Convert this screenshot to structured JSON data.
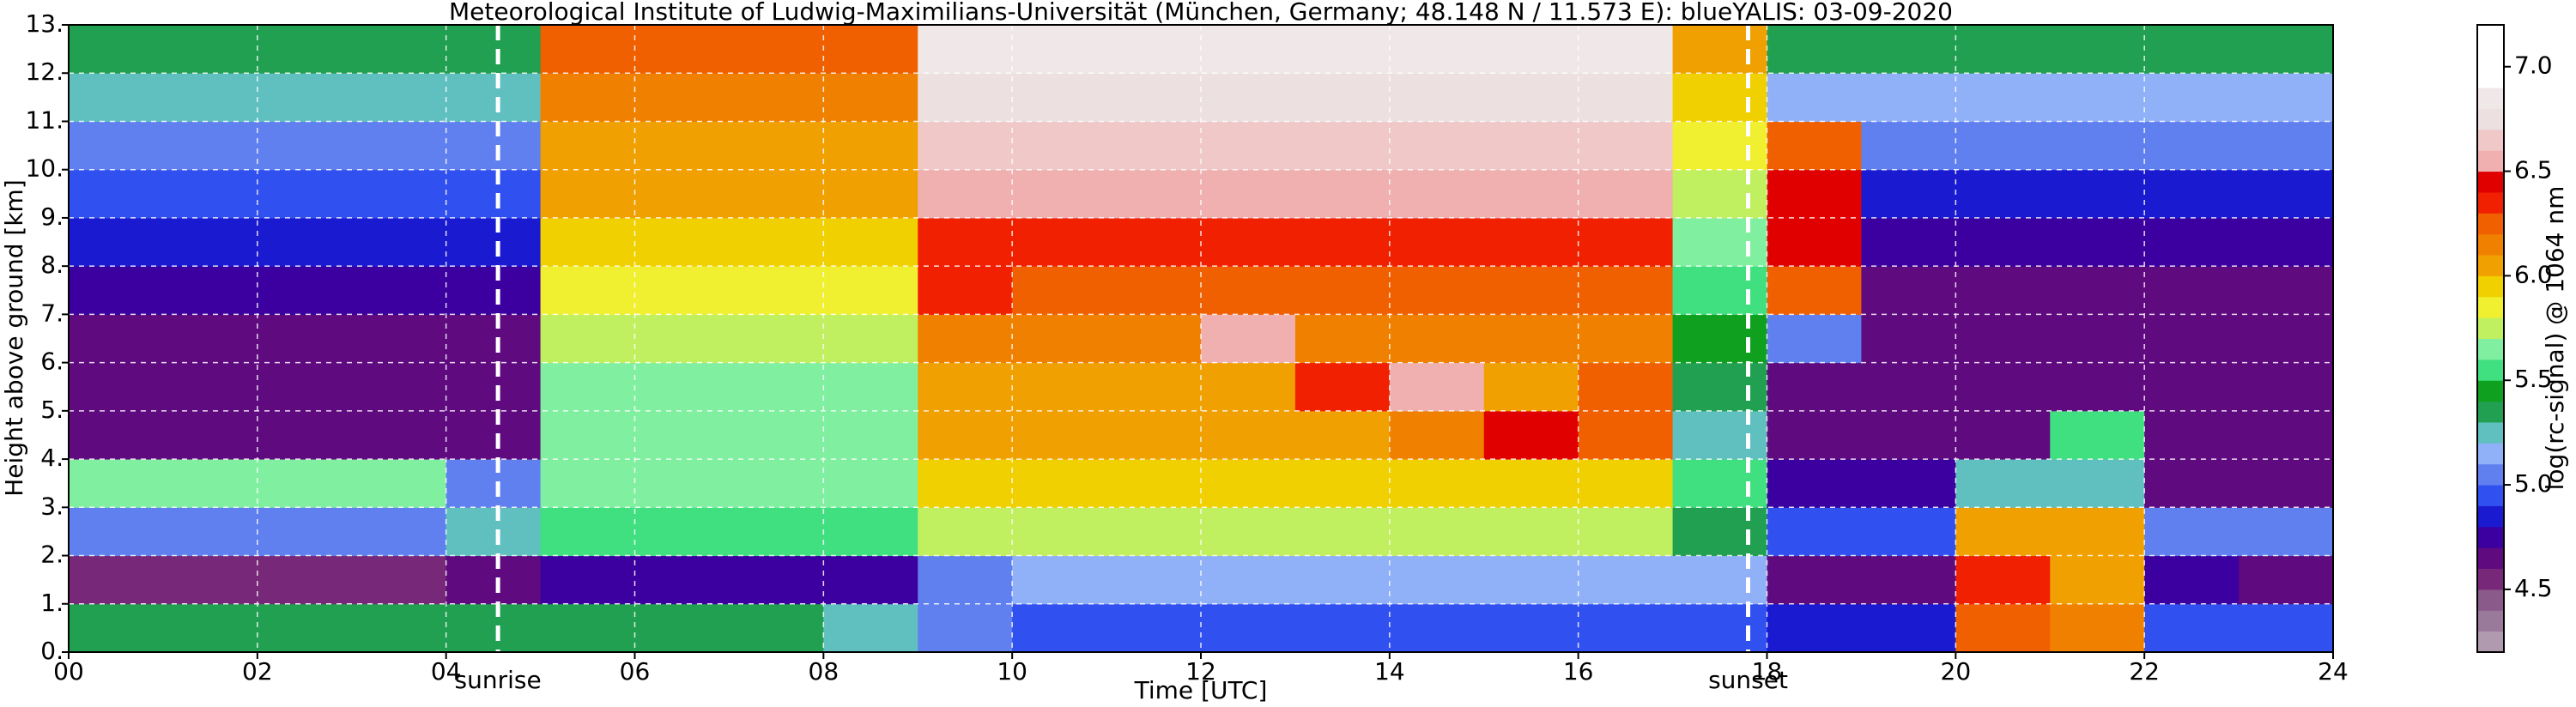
{
  "chart_data": {
    "type": "heatmap",
    "title": "Meteorological Institute of Ludwig-Maximilians-Universität (München, Germany; 48.148 N / 11.573 E):    blueYALIS: 03-09-2020",
    "x_label": "Time [UTC]",
    "y_label": "Height above ground [km]",
    "xlim": [
      0,
      24
    ],
    "ylim": [
      0,
      13
    ],
    "xticks": [
      {
        "value": 0,
        "label": "00"
      },
      {
        "value": 2,
        "label": "02"
      },
      {
        "value": 4,
        "label": "04"
      },
      {
        "value": 6,
        "label": "06"
      },
      {
        "value": 8,
        "label": "08"
      },
      10,
      12,
      14,
      16,
      18,
      20,
      22,
      24
    ],
    "yticks": [
      {
        "value": 0,
        "label": "0."
      },
      {
        "value": 1,
        "label": "1."
      },
      {
        "value": 2,
        "label": "2."
      },
      {
        "value": 3,
        "label": "3."
      },
      {
        "value": 4,
        "label": "4."
      },
      {
        "value": 5,
        "label": "5."
      },
      {
        "value": 6,
        "label": "6."
      },
      {
        "value": 7,
        "label": "7."
      },
      {
        "value": 8,
        "label": "8."
      },
      {
        "value": 9,
        "label": "9."
      },
      {
        "value": 10,
        "label": "10."
      },
      {
        "value": 11,
        "label": "11."
      },
      {
        "value": 12,
        "label": "12."
      },
      {
        "value": 13,
        "label": "13."
      }
    ],
    "grid": true,
    "annotations": [
      {
        "x": 4.55,
        "label": "sunrise"
      },
      {
        "x": 17.8,
        "label": "sunset"
      }
    ],
    "xbins": [
      0,
      1,
      2,
      3,
      4,
      5,
      6,
      7,
      8,
      9,
      10,
      11,
      12,
      13,
      14,
      15,
      16,
      17,
      18,
      19,
      20,
      21,
      22,
      23,
      24
    ],
    "ybins": [
      0,
      1,
      2,
      3,
      4,
      5,
      6,
      7,
      8,
      9,
      10,
      11,
      12,
      13
    ],
    "z": [
      [
        5.3,
        5.3,
        5.3,
        5.3,
        5.3,
        5.3,
        5.3,
        5.3,
        5.2,
        5.0,
        4.9,
        4.9,
        4.9,
        4.9,
        4.9,
        4.9,
        4.9,
        4.9,
        4.8,
        4.8,
        6.2,
        6.1,
        4.9,
        4.9
      ],
      [
        4.5,
        4.5,
        4.5,
        4.5,
        4.6,
        4.7,
        4.7,
        4.7,
        4.7,
        5.0,
        5.1,
        5.1,
        5.1,
        5.1,
        5.1,
        5.1,
        5.1,
        5.1,
        4.6,
        4.6,
        6.3,
        6.0,
        4.7,
        4.6
      ],
      [
        5.0,
        5.0,
        5.0,
        5.0,
        5.2,
        5.5,
        5.5,
        5.5,
        5.5,
        5.7,
        5.7,
        5.7,
        5.7,
        5.7,
        5.7,
        5.7,
        5.7,
        5.3,
        4.9,
        4.9,
        6.0,
        6.0,
        5.0,
        5.0
      ],
      [
        5.6,
        5.6,
        5.6,
        5.6,
        5.0,
        5.6,
        5.6,
        5.6,
        5.6,
        5.9,
        5.9,
        5.9,
        5.9,
        5.9,
        5.9,
        5.9,
        5.9,
        5.5,
        4.7,
        4.7,
        5.2,
        5.2,
        4.6,
        4.6
      ],
      [
        4.6,
        4.6,
        4.6,
        4.6,
        4.6,
        5.6,
        5.6,
        5.6,
        5.6,
        6.0,
        6.0,
        6.0,
        6.0,
        6.0,
        6.1,
        6.4,
        6.2,
        5.2,
        4.6,
        4.6,
        4.6,
        5.5,
        4.6,
        4.6
      ],
      [
        4.6,
        4.6,
        4.6,
        4.6,
        4.6,
        5.6,
        5.6,
        5.6,
        5.6,
        6.0,
        6.0,
        6.0,
        6.0,
        6.3,
        6.5,
        6.0,
        6.2,
        5.3,
        4.6,
        4.6,
        4.6,
        4.6,
        4.6,
        4.6
      ],
      [
        4.6,
        4.6,
        4.6,
        4.6,
        4.6,
        5.7,
        5.7,
        5.7,
        5.7,
        6.1,
        6.1,
        6.1,
        6.5,
        6.1,
        6.1,
        6.1,
        6.1,
        5.4,
        5.0,
        4.6,
        4.6,
        4.6,
        4.6,
        4.6
      ],
      [
        4.7,
        4.7,
        4.7,
        4.7,
        4.7,
        5.8,
        5.8,
        5.8,
        5.8,
        6.3,
        6.2,
        6.2,
        6.2,
        6.2,
        6.2,
        6.2,
        6.2,
        5.5,
        6.2,
        4.6,
        4.6,
        4.6,
        4.6,
        4.6
      ],
      [
        4.8,
        4.8,
        4.8,
        4.8,
        4.8,
        5.9,
        5.9,
        5.9,
        5.9,
        6.3,
        6.3,
        6.3,
        6.3,
        6.3,
        6.3,
        6.3,
        6.3,
        5.6,
        6.4,
        4.7,
        4.7,
        4.7,
        4.7,
        4.7
      ],
      [
        4.9,
        4.9,
        4.9,
        4.9,
        4.9,
        6.0,
        6.0,
        6.0,
        6.0,
        6.5,
        6.5,
        6.5,
        6.5,
        6.5,
        6.5,
        6.5,
        6.5,
        5.7,
        6.4,
        4.8,
        4.8,
        4.8,
        4.8,
        4.8
      ],
      [
        5.0,
        5.0,
        5.0,
        5.0,
        5.0,
        6.0,
        6.0,
        6.0,
        6.0,
        6.6,
        6.6,
        6.6,
        6.6,
        6.6,
        6.6,
        6.6,
        6.6,
        5.8,
        6.2,
        5.0,
        5.0,
        5.0,
        5.0,
        5.0
      ],
      [
        5.2,
        5.2,
        5.2,
        5.2,
        5.2,
        6.1,
        6.1,
        6.1,
        6.1,
        6.7,
        6.7,
        6.7,
        6.7,
        6.7,
        6.7,
        6.7,
        6.7,
        5.9,
        5.1,
        5.1,
        5.1,
        5.1,
        5.1,
        5.1
      ],
      [
        5.3,
        5.3,
        5.3,
        5.3,
        5.3,
        6.2,
        6.2,
        6.2,
        6.2,
        6.8,
        6.8,
        6.8,
        6.8,
        6.8,
        6.8,
        6.8,
        6.8,
        6.0,
        5.3,
        5.3,
        5.3,
        5.3,
        5.3,
        5.3
      ]
    ],
    "colorbar": {
      "label": "log(rc-signal) @ 1064 nm",
      "lim": [
        4.2,
        7.2
      ],
      "ticks": [
        4.5,
        5.0,
        5.5,
        6.0,
        6.5,
        7.0
      ],
      "colors": [
        "#b09ab0",
        "#9a7a9a",
        "#8a5a8a",
        "#782878",
        "#600a80",
        "#3c00a0",
        "#1a1ad0",
        "#3050f0",
        "#6080f0",
        "#90b0f8",
        "#60c0c0",
        "#20a050",
        "#10a020",
        "#40e080",
        "#80f0a0",
        "#c0f060",
        "#f0f030",
        "#f0d000",
        "#f0a000",
        "#f08000",
        "#f06000",
        "#f02000",
        "#e00000",
        "#f0b0b0",
        "#f0c8c8",
        "#ece0e0",
        "#f0e8e8",
        "#ffffff",
        "#ffffff",
        "#ffffff"
      ]
    }
  }
}
